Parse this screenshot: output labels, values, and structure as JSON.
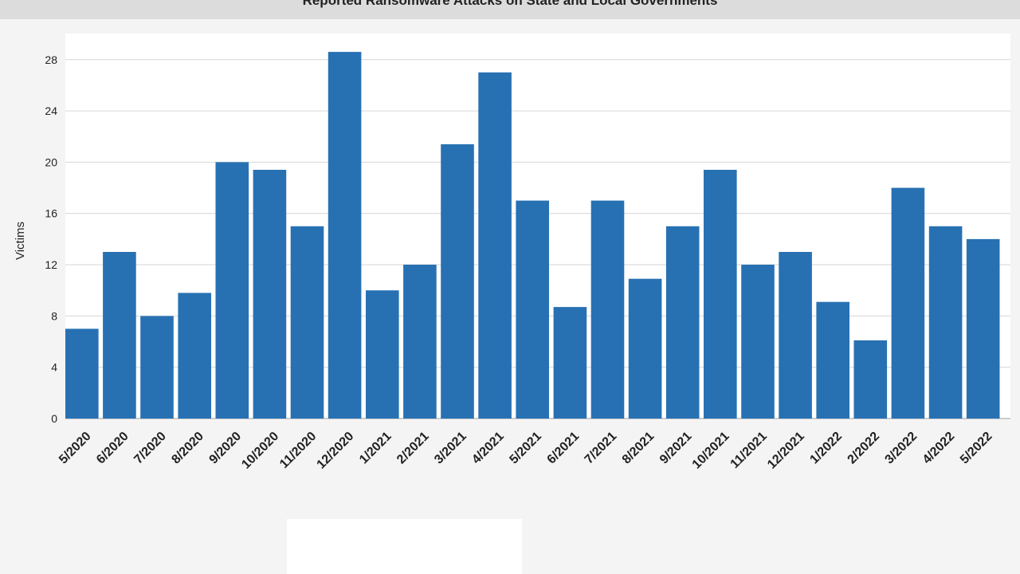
{
  "chart_data": {
    "type": "bar",
    "title": "Reported Ransomware Attacks on State and Local Governments",
    "ylabel": "Victims",
    "xlabel": "",
    "ylim": [
      0,
      30
    ],
    "yticks": [
      0,
      4,
      8,
      12,
      16,
      20,
      24,
      28
    ],
    "grid": true,
    "legend": "none",
    "bar_color": "#2771b3",
    "categories": [
      "5/2020",
      "6/2020",
      "7/2020",
      "8/2020",
      "9/2020",
      "10/2020",
      "11/2020",
      "12/2020",
      "1/2021",
      "2/2021",
      "3/2021",
      "4/2021",
      "5/2021",
      "6/2021",
      "7/2021",
      "8/2021",
      "9/2021",
      "10/2021",
      "11/2021",
      "12/2021",
      "1/2022",
      "2/2022",
      "3/2022",
      "4/2022",
      "5/2022"
    ],
    "values": [
      7,
      13,
      8,
      9.8,
      20,
      19.4,
      15,
      28.6,
      10,
      12,
      21.4,
      27,
      17,
      8.7,
      17,
      10.9,
      15,
      19.4,
      12,
      13,
      9.1,
      6.1,
      18,
      15,
      14
    ]
  }
}
